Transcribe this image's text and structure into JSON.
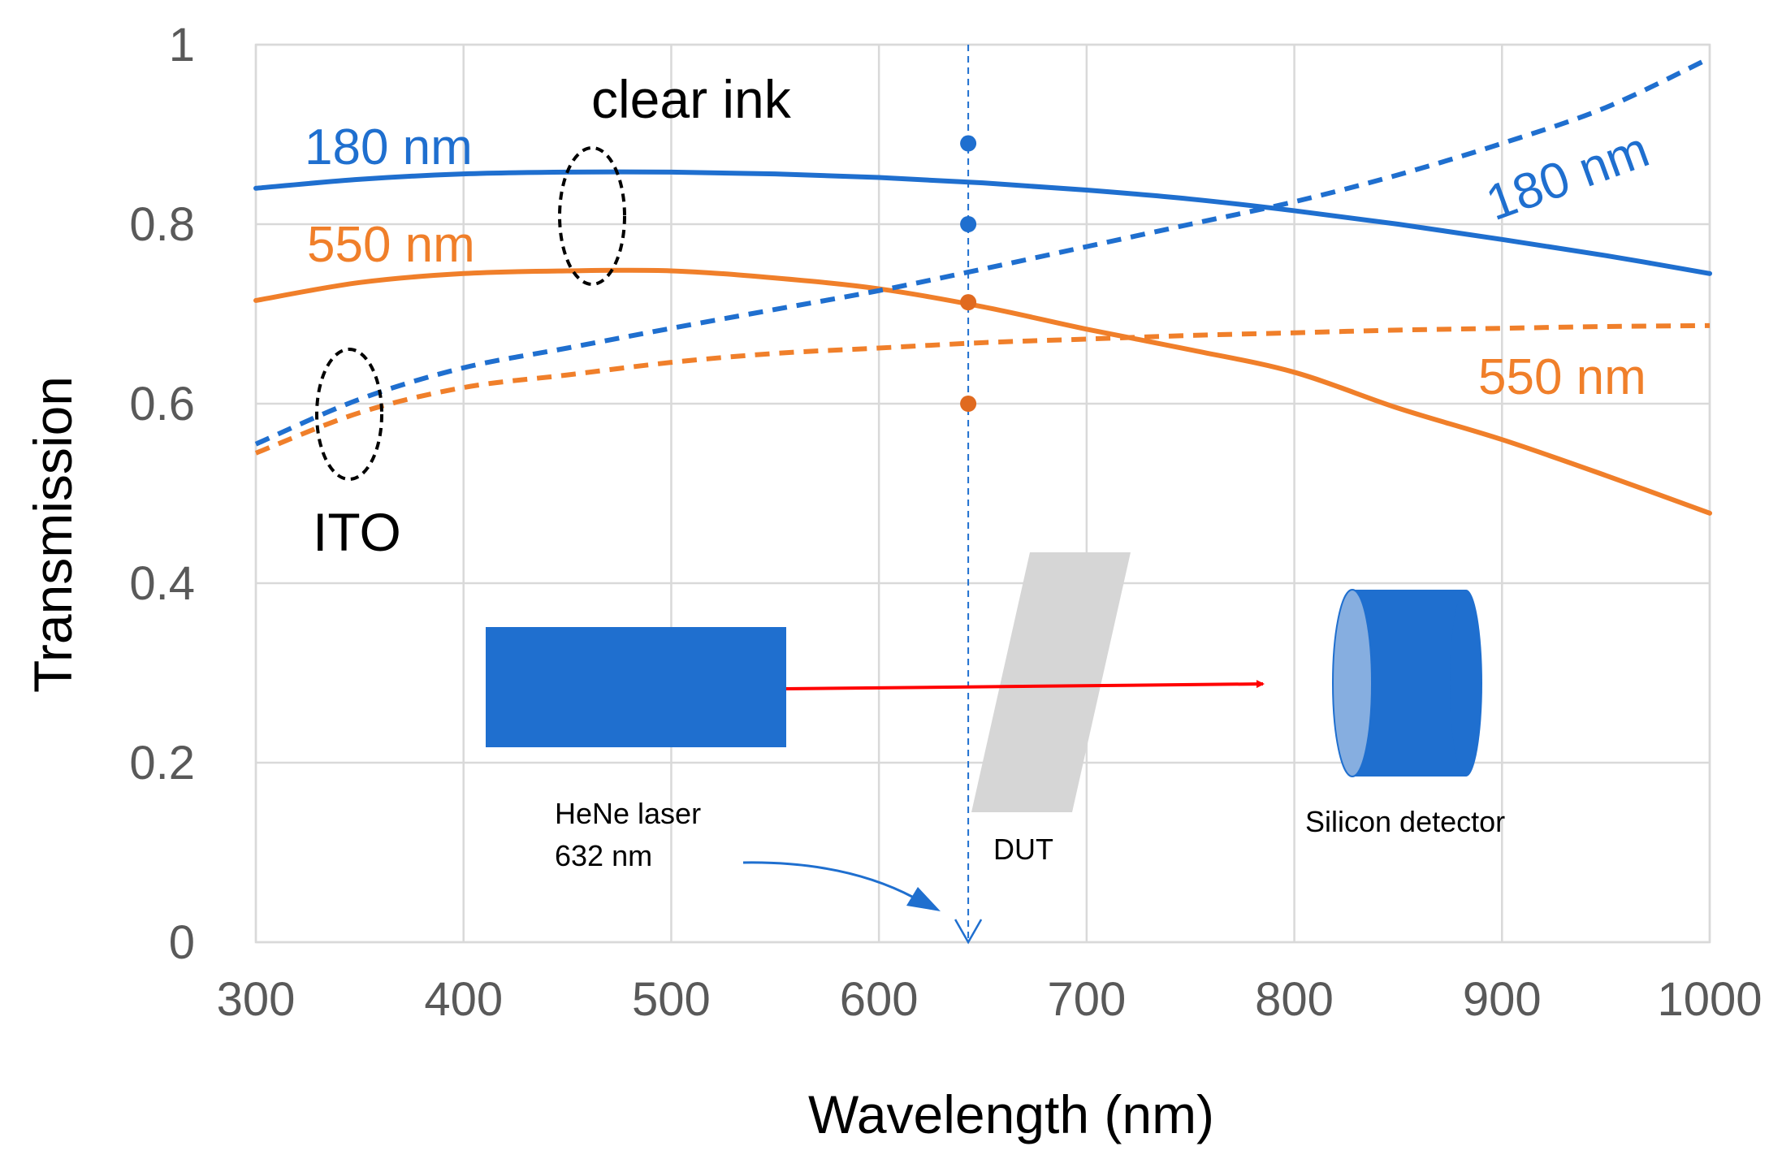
{
  "chart_data": {
    "type": "line",
    "title": "",
    "xlabel": "Wavelength (nm)",
    "ylabel": "Transmission",
    "xlim": [
      300,
      1000
    ],
    "ylim": [
      0,
      1
    ],
    "xticks": [
      300,
      400,
      500,
      600,
      700,
      800,
      900,
      1000
    ],
    "yticks": [
      0,
      0.2,
      0.4,
      0.6,
      0.8,
      1
    ],
    "ytick_labels": [
      "0",
      "0.2",
      "0.4",
      "0.6",
      "0.8",
      "1"
    ],
    "grid": true,
    "series": [
      {
        "name": "clear ink 180 nm",
        "color": "#1f6fcf",
        "dash": "solid",
        "x": [
          300,
          350,
          400,
          450,
          500,
          550,
          600,
          650,
          700,
          750,
          800,
          850,
          900,
          950,
          1000
        ],
        "y": [
          0.84,
          0.85,
          0.856,
          0.858,
          0.858,
          0.856,
          0.852,
          0.846,
          0.838,
          0.828,
          0.815,
          0.8,
          0.783,
          0.765,
          0.745
        ]
      },
      {
        "name": "clear ink 550 nm",
        "color": "#f07f2a",
        "dash": "solid",
        "x": [
          300,
          350,
          400,
          450,
          500,
          550,
          600,
          650,
          700,
          750,
          800,
          850,
          900,
          950,
          1000
        ],
        "y": [
          0.715,
          0.735,
          0.745,
          0.748,
          0.748,
          0.74,
          0.728,
          0.708,
          0.683,
          0.66,
          0.635,
          0.595,
          0.56,
          0.52,
          0.478
        ]
      },
      {
        "name": "ITO 180 nm",
        "color": "#1f6fcf",
        "dash": "dashed",
        "x": [
          300,
          350,
          400,
          450,
          500,
          550,
          600,
          650,
          700,
          750,
          800,
          850,
          900,
          950,
          1000
        ],
        "y": [
          0.555,
          0.605,
          0.64,
          0.662,
          0.684,
          0.705,
          0.726,
          0.75,
          0.775,
          0.8,
          0.825,
          0.855,
          0.89,
          0.93,
          0.985
        ]
      },
      {
        "name": "ITO 550 nm",
        "color": "#f07f2a",
        "dash": "dashed",
        "x": [
          300,
          350,
          400,
          450,
          500,
          550,
          600,
          650,
          700,
          750,
          800,
          850,
          900,
          950,
          1000
        ],
        "y": [
          0.545,
          0.59,
          0.618,
          0.632,
          0.646,
          0.656,
          0.662,
          0.668,
          0.672,
          0.676,
          0.679,
          0.682,
          0.684,
          0.686,
          0.687
        ]
      }
    ],
    "marker_wavelength": 643,
    "markers": [
      {
        "y": 0.89,
        "color": "#1f6fcf"
      },
      {
        "y": 0.8,
        "color": "#1f6fcf"
      },
      {
        "y": 0.713,
        "color": "#e06a20"
      },
      {
        "y": 0.6,
        "color": "#e06a20"
      }
    ],
    "annotations": {
      "clear_ink": "clear ink",
      "ito": "ITO",
      "blue_180_left": "180 nm",
      "orange_550_left": "550 nm",
      "blue_180_right": "180 nm",
      "orange_550_right": "550 nm"
    },
    "setup": {
      "laser_label_line1": "HeNe laser",
      "laser_label_line2": "632 nm",
      "dut_label": "DUT",
      "detector_label": "Silicon detector"
    }
  }
}
